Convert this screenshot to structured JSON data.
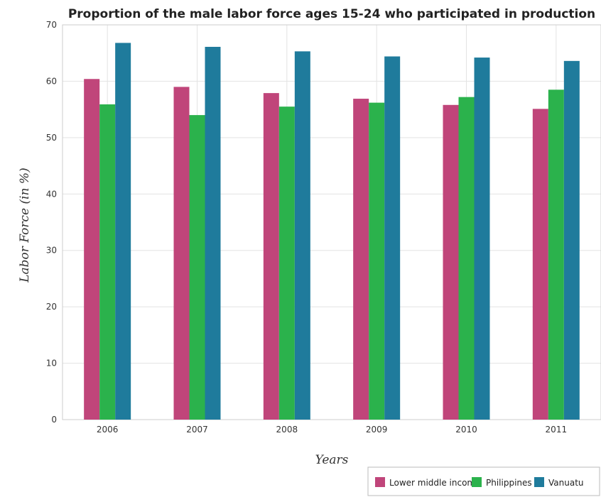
{
  "chart_data": {
    "type": "bar",
    "title": "Proportion of the male labor force ages 15-24 who participated in production",
    "xlabel": "Years",
    "ylabel": "Labor Force (in %)",
    "categories": [
      "2006",
      "2007",
      "2008",
      "2009",
      "2010",
      "2011"
    ],
    "ylim": [
      0,
      70
    ],
    "yticks": [
      0,
      10,
      20,
      30,
      40,
      50,
      60,
      70
    ],
    "grid": true,
    "legend_position": "bottom-right",
    "series": [
      {
        "name": "Lower middle income",
        "color": "#c0457a",
        "values": [
          60.4,
          59.0,
          57.9,
          56.9,
          55.8,
          55.1
        ]
      },
      {
        "name": "Philippines",
        "color": "#2bb24c",
        "values": [
          55.9,
          54.0,
          55.5,
          56.2,
          57.2,
          58.5
        ]
      },
      {
        "name": "Vanuatu",
        "color": "#1f7b9c",
        "values": [
          66.8,
          66.1,
          65.3,
          64.4,
          64.2,
          63.6
        ]
      }
    ]
  }
}
